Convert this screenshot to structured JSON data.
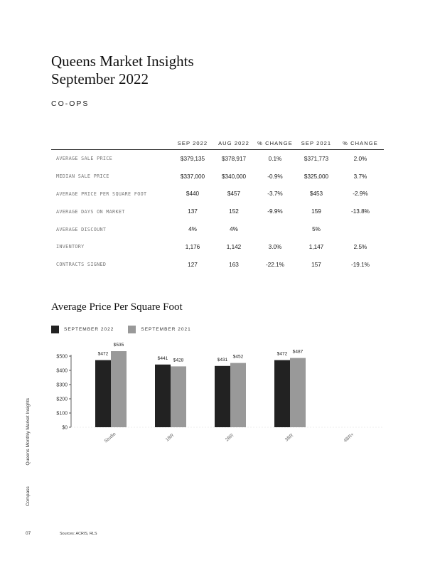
{
  "title_line1": "Queens Market Insights",
  "title_line2": "September 2022",
  "section": "CO-OPS",
  "table": {
    "headers": [
      "",
      "SEP 2022",
      "AUG 2022",
      "% CHANGE",
      "SEP 2021",
      "% CHANGE"
    ],
    "rows": [
      {
        "label": "AVERAGE SALE PRICE",
        "values": [
          "$379,135",
          "$378,917",
          "0.1%",
          "$371,773",
          "2.0%"
        ]
      },
      {
        "label": "MEDIAN SALE PRICE",
        "values": [
          "$337,000",
          "$340,000",
          "-0.9%",
          "$325,000",
          "3.7%"
        ]
      },
      {
        "label": "AVERAGE PRICE PER SQUARE FOOT",
        "values": [
          "$440",
          "$457",
          "-3.7%",
          "$453",
          "-2.9%"
        ]
      },
      {
        "label": "AVERAGE DAYS ON MARKET",
        "values": [
          "137",
          "152",
          "-9.9%",
          "159",
          "-13.8%"
        ]
      },
      {
        "label": "AVERAGE DISCOUNT",
        "values": [
          "4%",
          "4%",
          "",
          "5%",
          ""
        ]
      },
      {
        "label": "INVENTORY",
        "values": [
          "1,176",
          "1,142",
          "3.0%",
          "1,147",
          "2.5%"
        ]
      },
      {
        "label": "CONTRACTS SIGNED",
        "values": [
          "127",
          "163",
          "-22.1%",
          "157",
          "-19.1%"
        ]
      }
    ]
  },
  "chart_data": {
    "type": "bar",
    "title": "Average Price Per Square Foot",
    "categories": [
      "Studio",
      "1BR",
      "2BR",
      "3BR",
      "4BR+"
    ],
    "series": [
      {
        "name": "SEPTEMBER 2022",
        "color": "#222222",
        "values": [
          472,
          441,
          431,
          472,
          null
        ],
        "labels": [
          "$472",
          "$441",
          "$431",
          "$472",
          ""
        ]
      },
      {
        "name": "SEPTEMBER 2021",
        "color": "#999999",
        "values": [
          535,
          428,
          452,
          487,
          null
        ],
        "labels": [
          "$535",
          "$428",
          "$452",
          "$487",
          ""
        ]
      }
    ],
    "y_ticks": [
      0,
      100,
      200,
      300,
      400,
      500
    ],
    "y_tick_labels": [
      "$0",
      "$100",
      "$200",
      "$300",
      "$400",
      "$500"
    ],
    "ylim": [
      0,
      500
    ],
    "legend_position": "top-left",
    "grid": false
  },
  "side_label_brand": "Compass",
  "side_label_title": "Queens Monthly Market Insights",
  "page_number": "07",
  "sources": "Sources: ACRIS, RLS"
}
